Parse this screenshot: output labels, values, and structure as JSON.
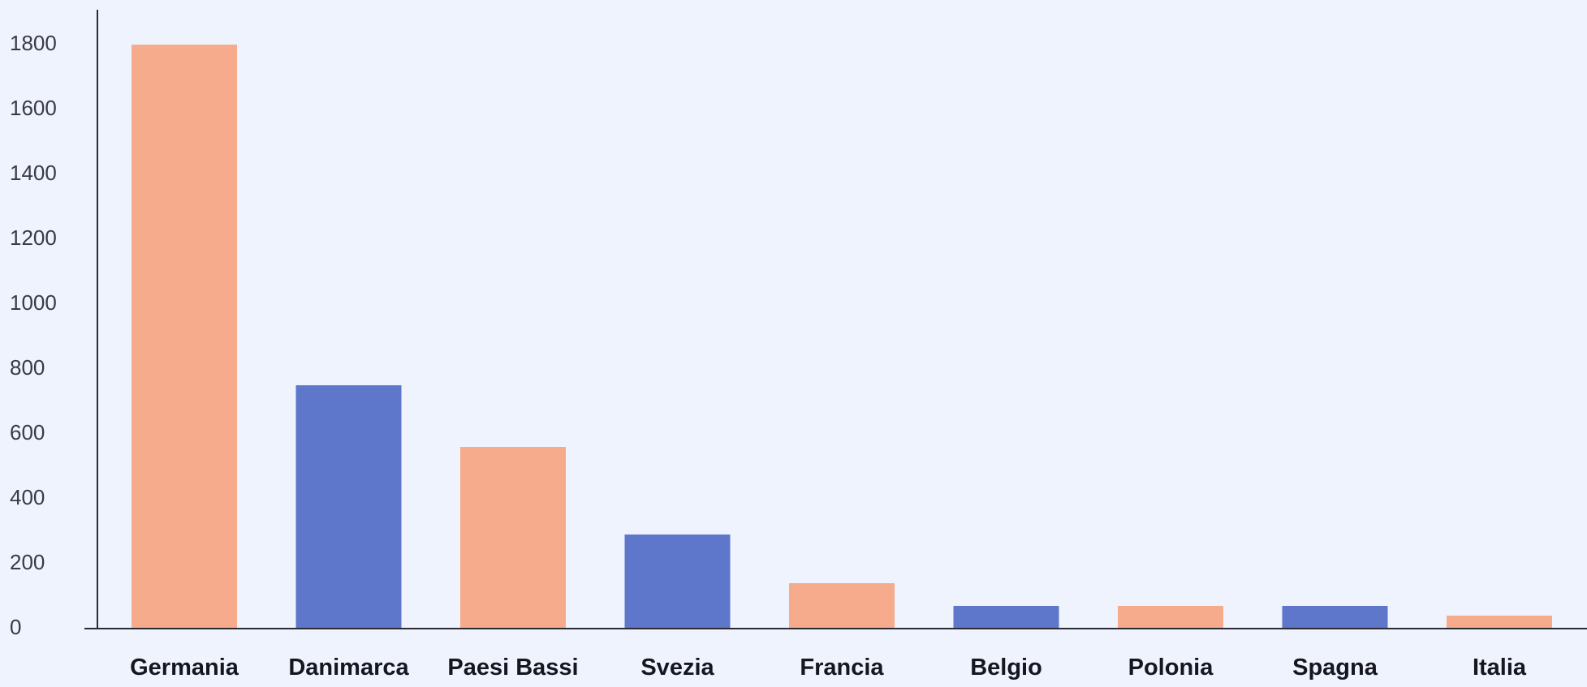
{
  "chart_data": {
    "type": "bar",
    "title": "",
    "xlabel": "",
    "ylabel": "",
    "categories": [
      "Germania",
      "Danimarca",
      "Paesi Bassi",
      "Svezia",
      "Francia",
      "Belgio",
      "Polonia",
      "Spagna",
      "Italia"
    ],
    "values": [
      1800,
      750,
      560,
      290,
      140,
      70,
      70,
      70,
      40
    ],
    "bar_colors": [
      "#f7ab8d",
      "#5e77cb",
      "#f7ab8d",
      "#5e77cb",
      "#f7ab8d",
      "#5e77cb",
      "#f7ab8d",
      "#5e77cb",
      "#f7ab8d"
    ],
    "ylim": [
      0,
      1800
    ],
    "yticks": [
      0,
      200,
      400,
      600,
      800,
      1000,
      1200,
      1400,
      1600,
      1800
    ],
    "grid": false,
    "legend": "none"
  },
  "colors": {
    "background": "#eef3fd",
    "axis": "#2b2b33"
  }
}
